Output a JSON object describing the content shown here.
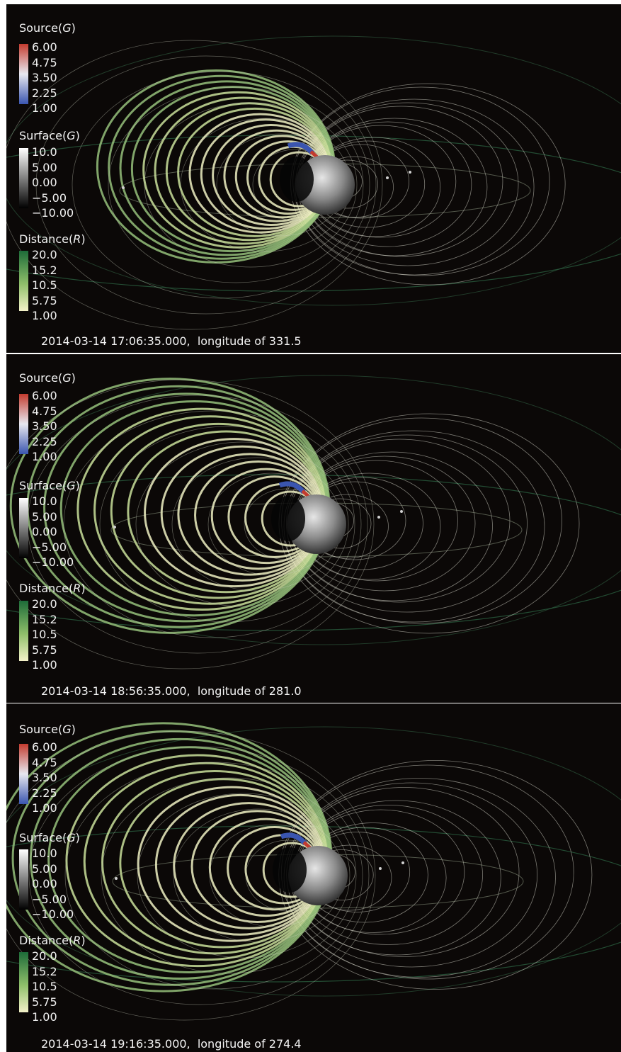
{
  "colors": {
    "background": "#0b0807",
    "source_gradient": [
      "#c33b2e",
      "#e8e8f0",
      "#3a55b0"
    ],
    "surface_gradient": [
      "#ffffff",
      "#000000"
    ],
    "distance_gradient": [
      "#1d6b38",
      "#8fbf6a",
      "#f3f1c8"
    ]
  },
  "panels": [
    {
      "legend": {
        "source": {
          "label": "Source(",
          "unit": "G",
          "close": ")",
          "ticks": [
            "6.00",
            "4.75",
            "3.50",
            "2.25",
            "1.00"
          ]
        },
        "surface": {
          "label": "Surface(",
          "unit": "G",
          "close": ")",
          "ticks": [
            "10.0",
            "5.00",
            "0.00",
            "−5.00",
            "−10.00"
          ]
        },
        "distance": {
          "label": "Distance(",
          "unit": "R",
          "close": ")",
          "ticks": [
            "20.0",
            "15.2",
            "10.5",
            "5.75",
            "1.00"
          ]
        }
      },
      "caption": "2014-03-14 17:06:35.000,  longitude of 331.5"
    },
    {
      "legend": {
        "source": {
          "label": "Source(",
          "unit": "G",
          "close": ")",
          "ticks": [
            "6.00",
            "4.75",
            "3.50",
            "2.25",
            "1.00"
          ]
        },
        "surface": {
          "label": "Surface(",
          "unit": "G",
          "close": ")",
          "ticks": [
            "10.0",
            "5.00",
            "0.00",
            "−5.00",
            "−10.00"
          ]
        },
        "distance": {
          "label": "Distance(",
          "unit": "R",
          "close": ")",
          "ticks": [
            "20.0",
            "15.2",
            "10.5",
            "5.75",
            "1.00"
          ]
        }
      },
      "caption": "2014-03-14 18:56:35.000,  longitude of 281.0"
    },
    {
      "legend": {
        "source": {
          "label": "Source(",
          "unit": "G",
          "close": ")",
          "ticks": [
            "6.00",
            "4.75",
            "3.50",
            "2.25",
            "1.00"
          ]
        },
        "surface": {
          "label": "Surface(",
          "unit": "G",
          "close": ")",
          "ticks": [
            "10.0",
            "5.00",
            "0.00",
            "−5.00",
            "−10.00"
          ]
        },
        "distance": {
          "label": "Distance(",
          "unit": "R",
          "close": ")",
          "ticks": [
            "20.0",
            "15.2",
            "10.5",
            "5.75",
            "1.00"
          ]
        }
      },
      "caption": "2014-03-14 19:16:35.000,  longitude of 274.4"
    }
  ]
}
